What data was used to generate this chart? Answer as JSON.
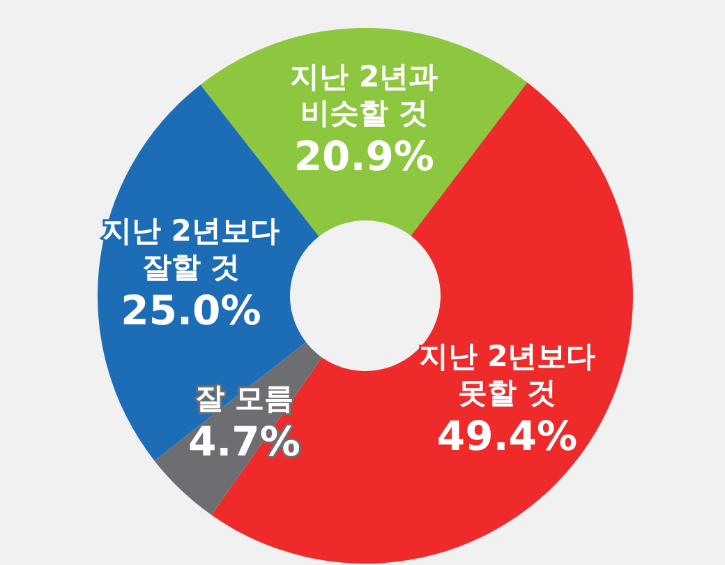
{
  "chart_data": {
    "type": "donut",
    "categories": [
      "지난 2년과\n비슷할 것",
      "지난 2년보다\n못할 것",
      "잘 모름",
      "지난 2년보다\n잘할 것"
    ],
    "values": [
      20.9,
      49.4,
      4.7,
      25.0
    ],
    "value_labels": [
      "20.9%",
      "49.4%",
      "4.7%",
      "25.0%"
    ],
    "colors": [
      "#8dc63f",
      "#ee2a2a",
      "#6d6e71",
      "#1c6db5"
    ]
  }
}
